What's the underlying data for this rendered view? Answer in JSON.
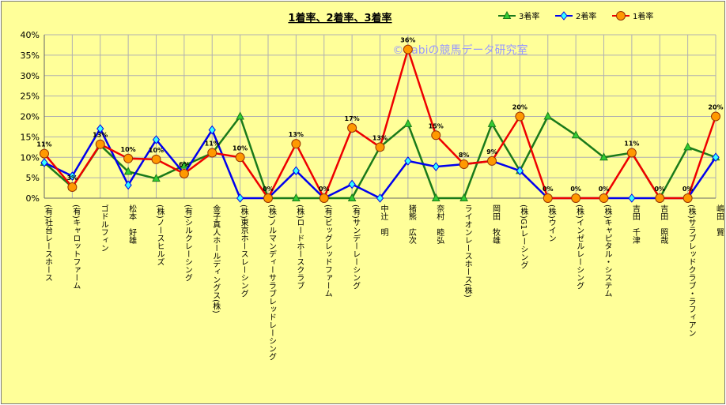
{
  "chart_data": {
    "type": "line",
    "title": "1着率、2着率、3着率",
    "watermark": "©Cabiの競馬データ研究室",
    "ylim": [
      0,
      40
    ],
    "yticks": [
      "0%",
      "5%",
      "10%",
      "15%",
      "20%",
      "25%",
      "30%",
      "35%",
      "40%"
    ],
    "grid": true,
    "legend_position": "top-right",
    "categories": [
      "(有)社台レースホース",
      "(有)キャロットファーム",
      "ゴドルフィン",
      "松本　好雄",
      "(株)ノースヒルズ",
      "(有)シルクレーシング",
      "金子真人ホールディングス(株)",
      "(株)東京ホースレーシング",
      "(株)ノルマンディーサラブレッドレーシング",
      "(株)ロードホースクラブ",
      "(有)ビッグレッドファーム",
      "(有)サンデーレーシング",
      "中辻　明",
      "猪熊　広次",
      "奈村　睦弘",
      "ライオンレースホース(株)",
      "岡田　牧雄",
      "(株)G1レーシング",
      "(株)ウイン",
      "(株)インゼルレーシング",
      "(株)キャピタル・システム",
      "吉田　千津",
      "吉田　照哉",
      "(株)サラブレッドクラブ・ラフィアン",
      "嶋田　賢"
    ],
    "series": [
      {
        "name": "3着率",
        "color": "#1a7a1a",
        "marker_color": "#33cc33",
        "marker": "triangle",
        "values": [
          8.7,
          2.7,
          13.0,
          6.5,
          4.8,
          8.0,
          11.0,
          20.0,
          0,
          0,
          0,
          0,
          12.5,
          18.2,
          0,
          0,
          18.2,
          6.7,
          20.0,
          15.4,
          10.0,
          11.1,
          0,
          12.5,
          10.0
        ]
      },
      {
        "name": "2着率",
        "color": "#0000ee",
        "marker_color": "#33ffff",
        "marker": "diamond",
        "values": [
          8.7,
          5.4,
          17.0,
          3.2,
          14.3,
          6.0,
          16.7,
          0,
          0,
          6.7,
          0,
          3.4,
          0,
          9.1,
          7.7,
          8.3,
          9.1,
          6.7,
          0,
          0,
          0,
          0,
          0,
          0,
          10.0
        ]
      },
      {
        "name": "1着率",
        "color": "#ee0000",
        "marker_color": "#ff9900",
        "marker": "circle",
        "values": [
          10.9,
          2.7,
          13.2,
          9.7,
          9.5,
          6.0,
          11.1,
          10.0,
          0,
          13.3,
          0,
          17.2,
          12.5,
          36.4,
          15.4,
          8.3,
          9.1,
          20.0,
          0,
          0,
          0,
          11.1,
          0,
          0,
          20.0
        ]
      }
    ],
    "data_labels_1st": [
      "11%",
      "3%",
      "13%",
      "10%",
      "10%",
      "6%",
      "11%",
      "10%",
      "0%",
      "13%",
      "0%",
      "17%",
      "13%",
      "36%",
      "15%",
      "8%",
      "9%",
      "20%",
      "0%",
      "0%",
      "0%",
      "11%",
      "0%",
      "0%",
      "20%"
    ]
  }
}
